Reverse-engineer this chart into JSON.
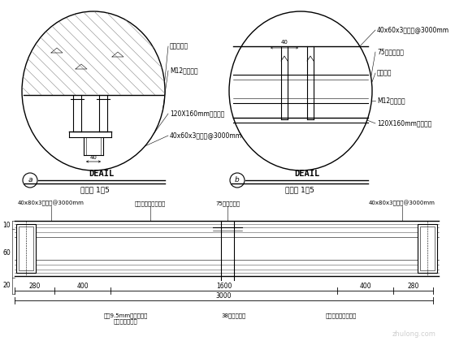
{
  "bg_color": "#ffffff",
  "annotations_left_circle": [
    "建筑楼板厕",
    "M12膏胀联栓",
    "120X160mm镇锌鎂板",
    "40x60x3方鎂管@3000mm"
  ],
  "annotations_right_circle": [
    "40x60x3方鎂管@3000mm",
    "75型隔墙龙骨",
    "沿地龙骨",
    "M12膏胀联栓",
    "120X160mm镇锌鎂板"
  ],
  "bottom_labels_top": [
    "40x80x3方鎂管@3000mm",
    "层高内填充吸音岩棣",
    "75型轻鎂龙骨",
    "40x80x3方鎂管@3000mm"
  ],
  "bottom_labels_bottom": [
    "双卨9.5mm纸面石膏板\n白色乳胶漆饭面",
    "38孔岩穿龙骨",
    "层高内填充吸音岩棣"
  ],
  "dim_labels": [
    "280",
    "400",
    "1600",
    "400",
    "280"
  ],
  "dim_total": "3000",
  "left_dims": [
    "10",
    "60",
    "20"
  ]
}
